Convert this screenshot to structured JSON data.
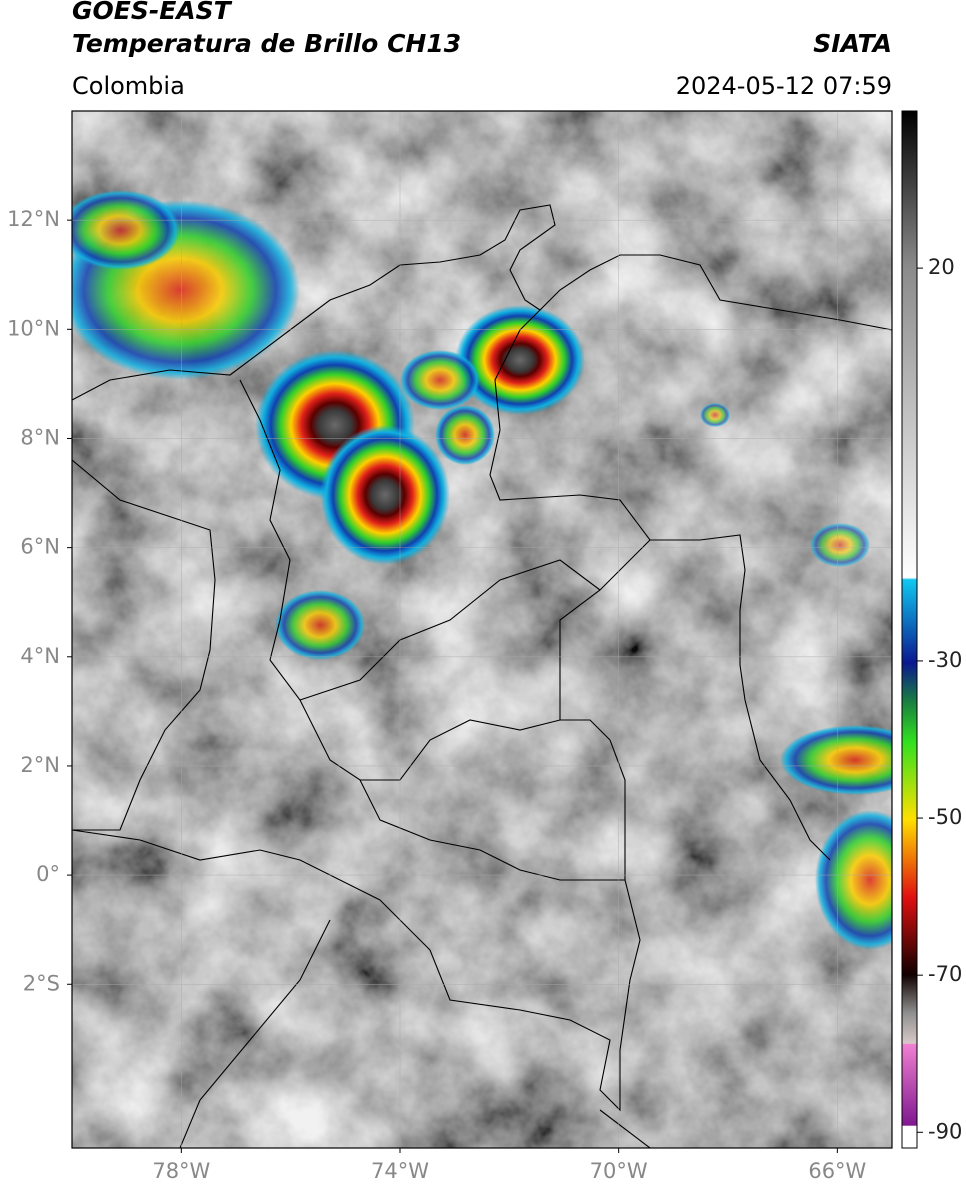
{
  "header": {
    "title": "GOES-EAST",
    "subtitle": "Temperatura de Brillo CH13",
    "source": "SIATA",
    "region": "Colombia",
    "datetime": "2024-05-12 07:59"
  },
  "map": {
    "xlim": [
      -80,
      -65
    ],
    "ylim": [
      -5,
      14
    ],
    "xticks": [
      {
        "value": -78,
        "label": "78°W"
      },
      {
        "value": -74,
        "label": "74°W"
      },
      {
        "value": -70,
        "label": "70°W"
      },
      {
        "value": -66,
        "label": "66°W"
      }
    ],
    "yticks": [
      {
        "value": 12,
        "label": "12°N"
      },
      {
        "value": 10,
        "label": "10°N"
      },
      {
        "value": 8,
        "label": "8°N"
      },
      {
        "value": 6,
        "label": "6°N"
      },
      {
        "value": 4,
        "label": "4°N"
      },
      {
        "value": 2,
        "label": "2°N"
      },
      {
        "value": 0,
        "label": "0°"
      },
      {
        "value": -2,
        "label": "2°S"
      }
    ]
  },
  "colorbar": {
    "lim": [
      -92,
      40
    ],
    "ticks": [
      20,
      -30,
      -50,
      -70,
      -90
    ]
  }
}
